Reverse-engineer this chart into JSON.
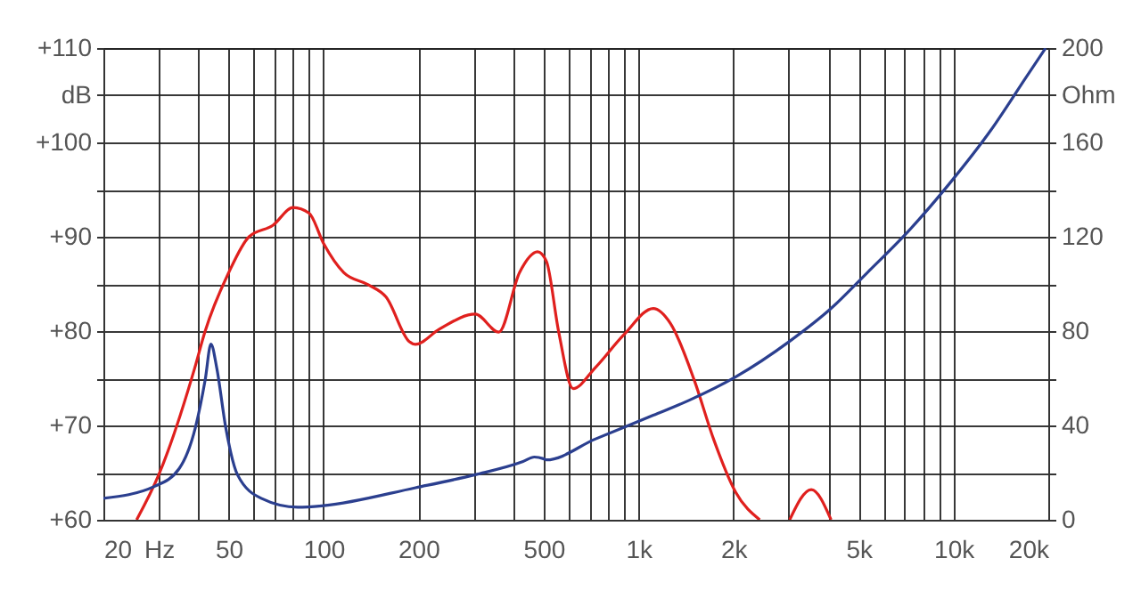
{
  "chart_data": {
    "type": "line",
    "log": "x",
    "grid": true,
    "xlim": [
      20,
      20000
    ],
    "xticks": [
      20,
      {
        "value": 30,
        "label": "Hz"
      },
      {
        "value": 40,
        "label": null
      },
      50,
      {
        "value": 60,
        "label": null
      },
      {
        "value": 70,
        "label": null
      },
      {
        "value": 80,
        "label": null
      },
      {
        "value": 90,
        "label": null
      },
      100,
      200,
      {
        "value": 300,
        "label": null
      },
      {
        "value": 400,
        "label": null
      },
      500,
      {
        "value": 600,
        "label": null
      },
      {
        "value": 700,
        "label": null
      },
      {
        "value": 800,
        "label": null
      },
      {
        "value": 900,
        "label": null
      },
      {
        "value": 1000,
        "label": "1k"
      },
      {
        "value": 2000,
        "label": "2k"
      },
      {
        "value": 3000,
        "label": null
      },
      {
        "value": 4000,
        "label": null
      },
      {
        "value": 5000,
        "label": "5k"
      },
      {
        "value": 6000,
        "label": null
      },
      {
        "value": 7000,
        "label": null
      },
      {
        "value": 8000,
        "label": null
      },
      {
        "value": 9000,
        "label": null
      },
      {
        "value": 10000,
        "label": "10k"
      },
      {
        "value": 20000,
        "label": "20k"
      }
    ],
    "ylim": [
      60,
      110
    ],
    "yticks": [
      {
        "value": 60,
        "label": "+60"
      },
      {
        "value": 65,
        "label": null
      },
      {
        "value": 70,
        "label": "+70"
      },
      {
        "value": 75,
        "label": null
      },
      {
        "value": 80,
        "label": "+80"
      },
      {
        "value": 85,
        "label": null
      },
      {
        "value": 90,
        "label": "+90"
      },
      {
        "value": 95,
        "label": null
      },
      {
        "value": 100,
        "label": "+100"
      },
      {
        "value": 105,
        "label": "dB"
      },
      {
        "value": 110,
        "label": "+110"
      }
    ],
    "y2lim": [
      0,
      200
    ],
    "y2ticks": [
      0,
      {
        "value": 20,
        "label": null
      },
      40,
      {
        "value": 60,
        "label": null
      },
      80,
      {
        "value": 100,
        "label": null
      },
      120,
      {
        "value": 140,
        "label": null
      },
      160,
      {
        "value": 180,
        "label": "Ohm"
      },
      200
    ],
    "series": [
      {
        "color": "#e0201e",
        "x": [
          25.5,
          30,
          39,
          42,
          50,
          58,
          69,
          80,
          90,
          100,
          116,
          139,
          158,
          187,
          196,
          233,
          303,
          360,
          419,
          478,
          510,
          558,
          620,
          728,
          898,
          1114,
          1264,
          1503,
          1733,
          2036,
          2426,
          2700,
          3020,
          3536,
          4086
        ],
        "values": [
          60,
          64.8,
          76.1,
          79.9,
          86.2,
          90,
          91.2,
          93.1,
          92.5,
          89.3,
          86.2,
          84.9,
          83.6,
          78.9,
          78.6,
          80.2,
          81.8,
          79.9,
          86.2,
          88.4,
          87.4,
          79.9,
          73.9,
          76.1,
          79.6,
          82.4,
          80.8,
          74.8,
          68.5,
          62.9,
          60,
          null,
          60,
          63.2,
          60
        ]
      },
      {
        "color": "#2b3f8f",
        "axis": "y2",
        "x": [
          20,
          29,
          34.8,
          39.2,
          42.1,
          43.9,
          45.8,
          48.9,
          53.3,
          63.4,
          82.9,
          100,
          196,
          303,
          430,
          467,
          499,
          510,
          728,
          1114,
          1445,
          2036,
          3020,
          4086,
          5318,
          7185,
          9705,
          13110,
          17020,
          19610
        ],
        "values": [
          9.1,
          14.1,
          21.7,
          39.2,
          59.4,
          74.5,
          64.4,
          39.2,
          19.1,
          9.1,
          5.3,
          6,
          13.6,
          19.1,
          24.7,
          26.6,
          25.9,
          25.4,
          34.2,
          44.3,
          50.6,
          60.6,
          75.7,
          89.6,
          104.7,
          122.3,
          142.5,
          165,
          187.7,
          200
        ]
      }
    ]
  }
}
